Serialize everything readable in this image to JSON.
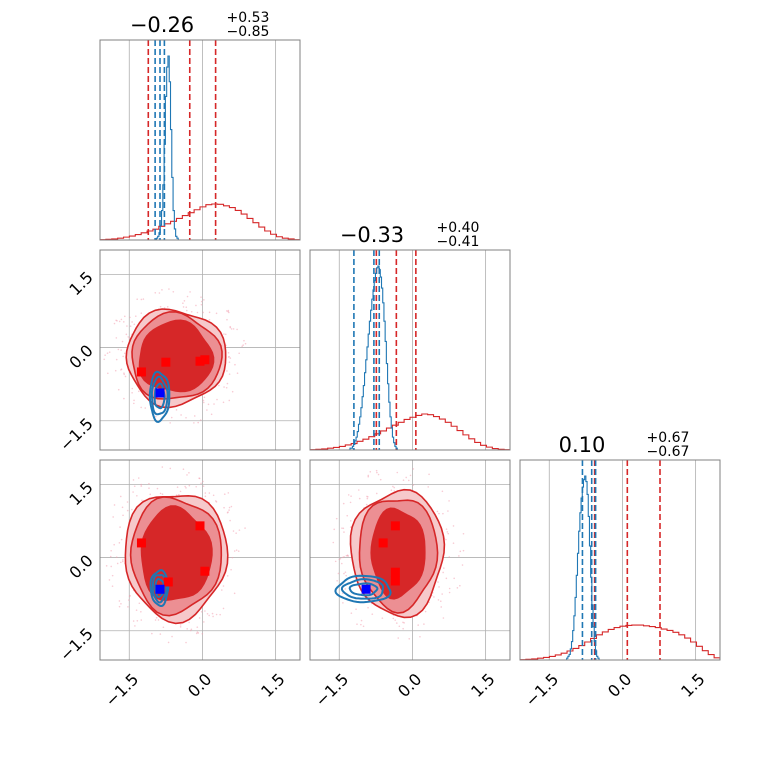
{
  "colors": {
    "posterior_a": "#d62728",
    "posterior_b": "#1f77b4",
    "point_a": "#ff0000",
    "point_b": "#0000ff",
    "grid": "#b0b0b0",
    "frame": "#808080"
  },
  "chart_data": {
    "type": "corner",
    "parameters": [
      "",
      "",
      ""
    ],
    "axis_range": [
      -2.1,
      2.0
    ],
    "ticks": [
      -1.5,
      0.0,
      1.5
    ],
    "tick_labels": [
      "−1.5",
      "0.0",
      "1.5"
    ],
    "titles": [
      {
        "median": "−0.26",
        "plus": "+0.53",
        "minus": "−0.85"
      },
      {
        "median": "−0.33",
        "plus": "+0.40",
        "minus": "−0.41"
      },
      {
        "median": "0.10",
        "plus": "+0.67",
        "minus": "−0.67"
      }
    ],
    "posterior_a": {
      "color": "#d62728",
      "quantiles": [
        [
          -1.11,
          -0.26,
          0.27
        ],
        [
          -0.74,
          -0.33,
          0.07
        ],
        [
          -0.57,
          0.1,
          0.77
        ]
      ],
      "hist": [
        [
          0.01,
          0.02,
          0.03,
          0.05,
          0.08,
          0.11,
          0.15,
          0.2,
          0.25,
          0.3,
          0.38,
          0.45,
          0.52,
          0.6,
          0.68,
          0.76,
          0.84,
          0.92,
          0.98,
          1.0,
          0.99,
          0.95,
          0.9,
          0.82,
          0.72,
          0.6,
          0.48,
          0.36,
          0.25,
          0.16,
          0.09,
          0.05,
          0.03,
          0.01
        ],
        [
          0.01,
          0.02,
          0.03,
          0.05,
          0.07,
          0.1,
          0.14,
          0.18,
          0.24,
          0.3,
          0.37,
          0.45,
          0.53,
          0.61,
          0.69,
          0.77,
          0.85,
          0.91,
          0.96,
          1.0,
          0.98,
          0.93,
          0.86,
          0.77,
          0.66,
          0.54,
          0.42,
          0.31,
          0.21,
          0.13,
          0.08,
          0.04,
          0.02,
          0.01
        ],
        [
          0.01,
          0.02,
          0.03,
          0.05,
          0.07,
          0.1,
          0.14,
          0.19,
          0.25,
          0.32,
          0.4,
          0.5,
          0.6,
          0.7,
          0.78,
          0.85,
          0.9,
          0.94,
          0.96,
          0.97,
          0.97,
          0.95,
          0.93,
          0.9,
          0.86,
          0.82,
          0.77,
          0.7,
          0.61,
          0.5,
          0.38,
          0.26,
          0.15,
          0.06
        ]
      ],
      "points": [
        {
          "pair": [
            0,
            1
          ],
          "x": [
            -1.25,
            -0.75,
            -0.05,
            0.05
          ],
          "y": [
            -0.5,
            -0.3,
            -0.28,
            -0.25
          ]
        },
        {
          "pair": [
            0,
            2
          ],
          "x": [
            -1.25,
            -0.7,
            -0.05,
            0.05
          ],
          "y": [
            0.3,
            -0.5,
            0.65,
            -0.28
          ]
        },
        {
          "pair": [
            1,
            2
          ],
          "x": [
            -0.6,
            -0.35,
            -0.35,
            -0.35
          ],
          "y": [
            0.3,
            0.65,
            -0.3,
            -0.48
          ]
        }
      ]
    },
    "posterior_b": {
      "color": "#1f77b4",
      "quantiles": [
        [
          -0.97,
          -0.87,
          -0.78
        ],
        [
          -1.2,
          -0.79,
          -0.68
        ],
        [
          -0.82,
          -0.63,
          -0.55
        ]
      ],
      "hist": [
        [
          0,
          0,
          0,
          0,
          0,
          0,
          0,
          0,
          0,
          0,
          0,
          0,
          0,
          0,
          0,
          0,
          0,
          0,
          0,
          0,
          0,
          0,
          0,
          0,
          0,
          0,
          0,
          0,
          0,
          0,
          0,
          0,
          0,
          0,
          0,
          0,
          0,
          0,
          0,
          0,
          0,
          0,
          0,
          0,
          0.01,
          0.02,
          0.04,
          0.08,
          0.16,
          0.3,
          0.52,
          0.78,
          0.94,
          1.0,
          0.86,
          0.6,
          0.34,
          0.16,
          0.06,
          0.02,
          0.01,
          0,
          0,
          0,
          0,
          0,
          0,
          0,
          0,
          0,
          0,
          0,
          0,
          0,
          0,
          0,
          0,
          0,
          0,
          0,
          0,
          0,
          0,
          0,
          0,
          0,
          0,
          0,
          0,
          0,
          0,
          0,
          0,
          0,
          0,
          0,
          0,
          0,
          0,
          0,
          0,
          0,
          0,
          0,
          0,
          0,
          0,
          0,
          0,
          0,
          0,
          0,
          0,
          0,
          0,
          0,
          0,
          0,
          0,
          0,
          0,
          0,
          0,
          0,
          0,
          0,
          0,
          0,
          0,
          0,
          0,
          0,
          0,
          0,
          0,
          0,
          0,
          0,
          0,
          0,
          0,
          0,
          0,
          0,
          0,
          0,
          0,
          0,
          0,
          0,
          0,
          0,
          0,
          0,
          0,
          0
        ],
        [
          0,
          0,
          0,
          0,
          0,
          0,
          0,
          0,
          0,
          0,
          0,
          0,
          0,
          0,
          0,
          0,
          0,
          0,
          0,
          0,
          0,
          0,
          0,
          0,
          0,
          0,
          0,
          0,
          0,
          0,
          0,
          0,
          0,
          0.01,
          0.01,
          0.02,
          0.03,
          0.05,
          0.07,
          0.1,
          0.14,
          0.18,
          0.23,
          0.29,
          0.35,
          0.42,
          0.49,
          0.56,
          0.63,
          0.7,
          0.76,
          0.82,
          0.87,
          0.92,
          0.96,
          0.99,
          1.0,
          0.98,
          0.94,
          0.88,
          0.8,
          0.7,
          0.59,
          0.47,
          0.36,
          0.26,
          0.18,
          0.12,
          0.07,
          0.04,
          0.02,
          0.01,
          0,
          0,
          0,
          0,
          0,
          0,
          0,
          0,
          0,
          0,
          0,
          0,
          0,
          0,
          0,
          0,
          0,
          0,
          0,
          0,
          0,
          0,
          0,
          0,
          0,
          0,
          0,
          0,
          0,
          0,
          0,
          0,
          0,
          0,
          0,
          0,
          0,
          0,
          0,
          0,
          0,
          0,
          0,
          0,
          0,
          0,
          0,
          0,
          0,
          0,
          0,
          0,
          0,
          0,
          0,
          0,
          0,
          0,
          0,
          0,
          0,
          0,
          0,
          0,
          0,
          0,
          0,
          0,
          0,
          0,
          0,
          0,
          0,
          0,
          0,
          0,
          0,
          0,
          0,
          0,
          0,
          0,
          0,
          0,
          0,
          0,
          0,
          0,
          0,
          0,
          0,
          0,
          0
        ],
        [
          0,
          0,
          0,
          0,
          0,
          0,
          0,
          0,
          0,
          0,
          0,
          0,
          0,
          0,
          0,
          0,
          0,
          0,
          0,
          0,
          0,
          0,
          0,
          0,
          0,
          0,
          0,
          0,
          0,
          0,
          0,
          0,
          0,
          0,
          0,
          0,
          0,
          0,
          0,
          0.01,
          0.02,
          0.03,
          0.06,
          0.1,
          0.16,
          0.24,
          0.34,
          0.46,
          0.58,
          0.7,
          0.8,
          0.88,
          0.94,
          0.98,
          1.0,
          0.97,
          0.9,
          0.78,
          0.62,
          0.45,
          0.3,
          0.18,
          0.1,
          0.05,
          0.02,
          0.01,
          0,
          0,
          0,
          0,
          0,
          0,
          0,
          0,
          0,
          0,
          0,
          0,
          0,
          0,
          0,
          0,
          0,
          0,
          0,
          0,
          0,
          0,
          0,
          0,
          0,
          0,
          0,
          0,
          0,
          0,
          0,
          0,
          0,
          0,
          0,
          0,
          0,
          0,
          0,
          0,
          0,
          0,
          0,
          0,
          0,
          0,
          0,
          0,
          0,
          0,
          0,
          0,
          0,
          0,
          0,
          0,
          0,
          0,
          0,
          0,
          0,
          0,
          0,
          0,
          0,
          0,
          0,
          0,
          0,
          0,
          0,
          0,
          0,
          0,
          0,
          0,
          0,
          0,
          0,
          0,
          0,
          0,
          0,
          0,
          0,
          0,
          0,
          0,
          0,
          0,
          0,
          0,
          0,
          0,
          0,
          0,
          0,
          0,
          0,
          0,
          0
        ]
      ],
      "points": [
        {
          "pair": [
            0,
            1
          ],
          "x": [
            -0.87
          ],
          "y": [
            -0.93
          ]
        },
        {
          "pair": [
            0,
            2
          ],
          "x": [
            -0.87
          ],
          "y": [
            -0.65
          ]
        },
        {
          "pair": [
            1,
            2
          ],
          "x": [
            -0.95
          ],
          "y": [
            -0.65
          ]
        }
      ]
    },
    "contours_a": {
      "pair_01": {
        "cx": -0.55,
        "cy": -0.2,
        "rx": [
          0.75,
          0.92,
          1.02
        ],
        "ry": [
          0.72,
          0.88,
          0.98
        ]
      },
      "pair_02": {
        "cx": -0.55,
        "cy": 0.05,
        "rx": [
          0.72,
          0.93,
          1.05
        ],
        "ry": [
          0.95,
          1.18,
          1.3
        ]
      },
      "pair_12": {
        "cx": -0.3,
        "cy": 0.1,
        "rx": [
          0.55,
          0.8,
          0.95
        ],
        "ry": [
          0.9,
          1.15,
          1.28
        ]
      }
    },
    "contours_b": {
      "pair_01": {
        "cx": -0.88,
        "cy": -1.0,
        "rx": [
          0.1,
          0.16,
          0.2
        ],
        "ry": [
          0.25,
          0.38,
          0.5
        ]
      },
      "pair_02": {
        "cx": -0.88,
        "cy": -0.62,
        "rx": [
          0.09,
          0.14,
          0.18
        ],
        "ry": [
          0.18,
          0.28,
          0.36
        ]
      },
      "pair_12": {
        "cx": -1.0,
        "cy": -0.65,
        "rx": [
          0.28,
          0.42,
          0.55
        ],
        "ry": [
          0.12,
          0.2,
          0.27
        ]
      }
    }
  }
}
